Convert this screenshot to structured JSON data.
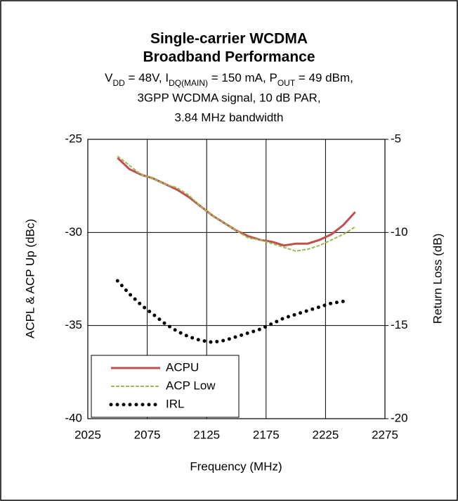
{
  "chart_data": {
    "type": "line",
    "title": [
      "Single-carrier WCDMA",
      "Broadband Performance"
    ],
    "subtitle": [
      [
        "V",
        "DD",
        " = 48V, I",
        "DQ(MAIN)",
        " = 150 mA, P",
        "OUT",
        " = 49 dBm,"
      ],
      "3GPP WCDMA signal, 10 dB PAR,",
      "3.84 MHz bandwidth"
    ],
    "xlabel": "Frequency (MHz)",
    "ylabel": "ACPL & ACP Up (dBc)",
    "y2label": "Return Loss (dB)",
    "x": [
      2050,
      2060,
      2070,
      2080,
      2090,
      2100,
      2110,
      2120,
      2130,
      2140,
      2150,
      2160,
      2170,
      2180,
      2190,
      2200,
      2210,
      2220,
      2230,
      2240,
      2250
    ],
    "series": [
      {
        "name": "ACPU",
        "color": "#c0504d",
        "style": "solid",
        "values": [
          -26.0,
          -26.6,
          -26.9,
          -27.1,
          -27.4,
          -27.7,
          -28.1,
          -28.6,
          -29.1,
          -29.5,
          -29.9,
          -30.2,
          -30.4,
          -30.5,
          -30.7,
          -30.6,
          -30.6,
          -30.4,
          -30.1,
          -29.6,
          -28.9
        ]
      },
      {
        "name": "ACP Low",
        "color": "#9bbb59",
        "style": "dashed",
        "values": [
          -25.9,
          -26.4,
          -26.9,
          -27.1,
          -27.4,
          -27.6,
          -28.0,
          -28.6,
          -29.1,
          -29.5,
          -29.9,
          -30.3,
          -30.4,
          -30.6,
          -30.8,
          -31.0,
          -30.9,
          -30.7,
          -30.4,
          -30.1,
          -29.7
        ]
      },
      {
        "name": "IRL",
        "color": "#000000",
        "style": "dotted",
        "axis": "y2",
        "values": [
          -12.6,
          -13.3,
          -13.9,
          -14.4,
          -14.9,
          -15.3,
          -15.6,
          -15.8,
          -15.9,
          -15.8,
          -15.6,
          -15.4,
          -15.2,
          -14.9,
          -14.6,
          -14.4,
          -14.2,
          -14.0,
          -13.8,
          -13.7,
          null
        ]
      }
    ],
    "xlim": [
      2025,
      2275
    ],
    "xticks": [
      2025,
      2075,
      2125,
      2175,
      2225,
      2275
    ],
    "ylim": [
      -40,
      -25
    ],
    "yticks": [
      -40,
      -35,
      -30,
      -25
    ],
    "y2lim": [
      -20,
      -5
    ],
    "y2ticks": [
      -20,
      -15,
      -10,
      -5
    ],
    "grid": true,
    "legend": "lower left"
  }
}
